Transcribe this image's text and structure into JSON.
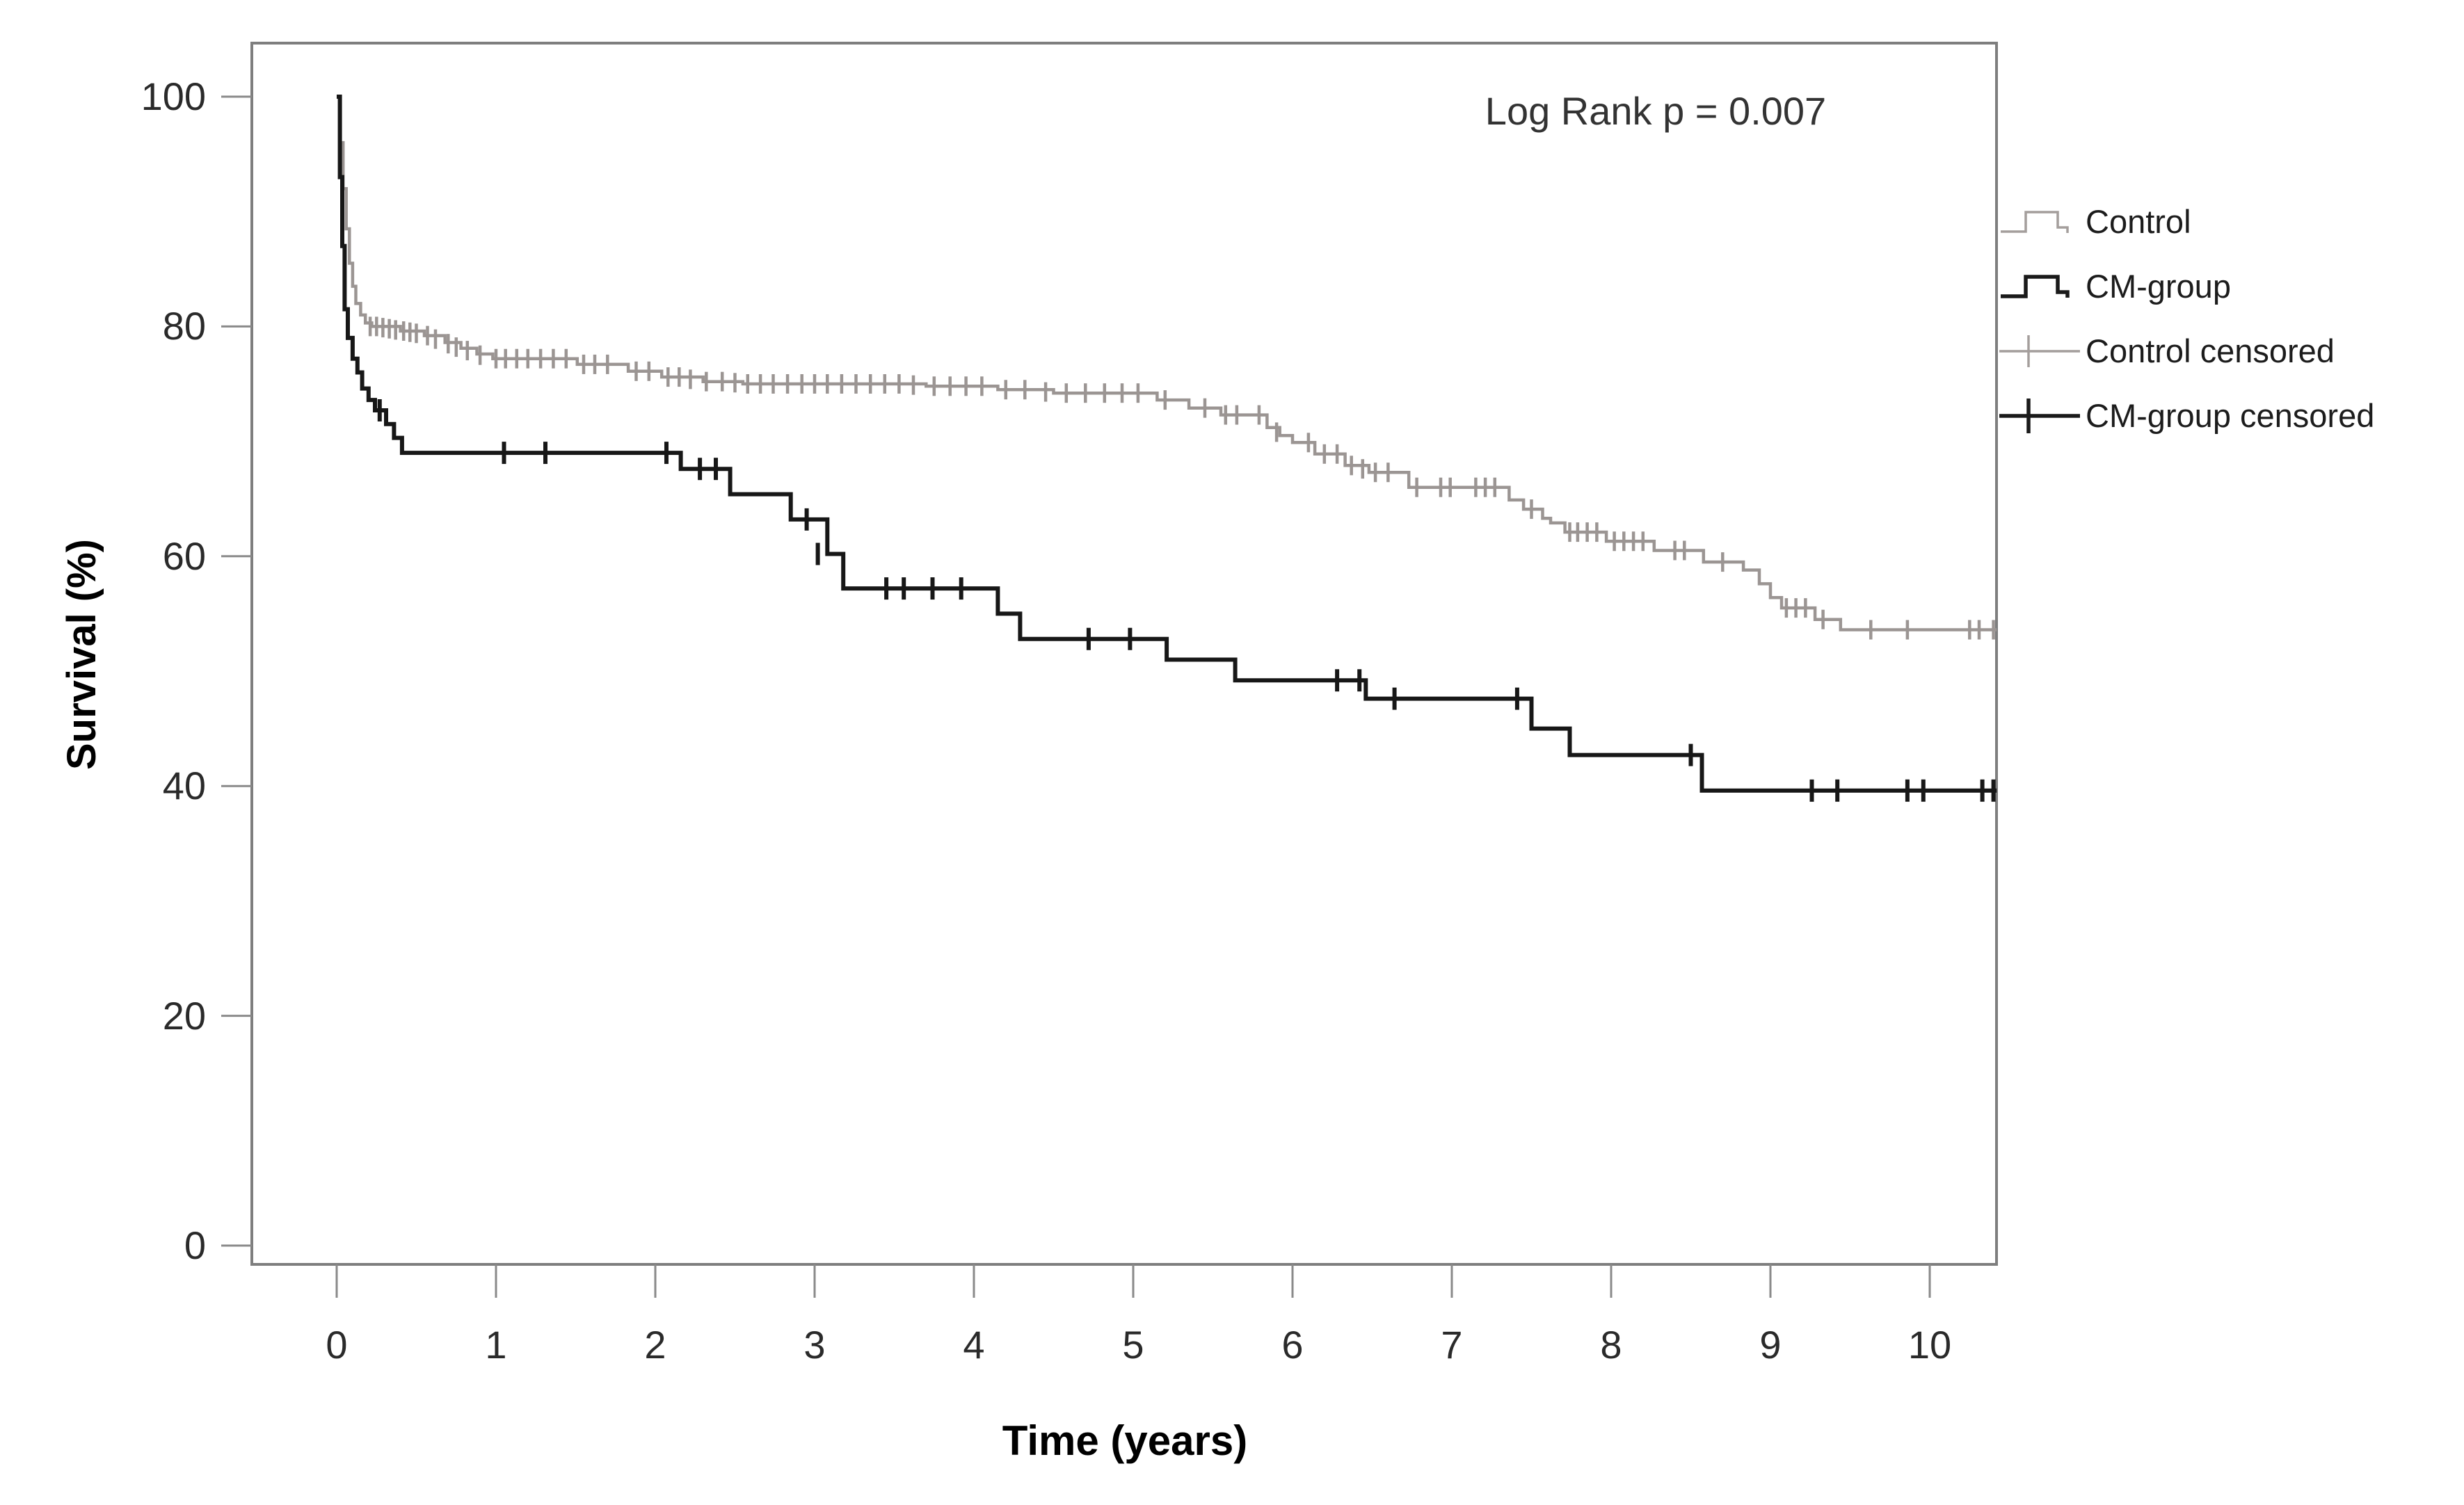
{
  "annotation": {
    "log_rank_label": "Log Rank p = 0.007"
  },
  "axes": {
    "y_title": "Survival (%)",
    "x_title": "Time (years)",
    "y_ticks": [
      "100",
      "80",
      "60",
      "40",
      "20",
      "0"
    ],
    "x_ticks": [
      "0",
      "1",
      "2",
      "3",
      "4",
      "5",
      "6",
      "7",
      "8",
      "9",
      "10"
    ]
  },
  "legend": {
    "items": [
      {
        "label": "Control",
        "type": "step",
        "color": "#a49e9c",
        "stroke_width": 3.5
      },
      {
        "label": "CM-group",
        "type": "step",
        "color": "#1a1a1a",
        "stroke_width": 5.5
      },
      {
        "label": "Control censored",
        "type": "censor",
        "color": "#a49e9c",
        "stroke_width": 3.5
      },
      {
        "label": "CM-group censored",
        "type": "censor",
        "color": "#1a1a1a",
        "stroke_width": 5.5
      }
    ]
  },
  "chart_data": {
    "type": "line",
    "subtype": "kaplan-meier-step",
    "title": "",
    "xlabel": "Time (years)",
    "ylabel": "Survival (%)",
    "xlim": [
      -0.53,
      10.42
    ],
    "ylim": [
      -1.6,
      101.6
    ],
    "x_tick_values": [
      0,
      1,
      2,
      3,
      4,
      5,
      6,
      7,
      8,
      9,
      10
    ],
    "y_tick_values": [
      100,
      80,
      60,
      40,
      20,
      0
    ],
    "grid": false,
    "legend_position": "right-outside",
    "log_rank_p": 0.007,
    "series": [
      {
        "name": "Control",
        "color": "#9b9593",
        "stroke_width": 4.5,
        "censor_half_height": 14,
        "censor_stroke_width": 4.5,
        "points": [
          [
            0,
            100
          ],
          [
            0.02,
            96
          ],
          [
            0.04,
            92
          ],
          [
            0.06,
            88.5
          ],
          [
            0.08,
            85.5
          ],
          [
            0.1,
            83.5
          ],
          [
            0.12,
            82
          ],
          [
            0.15,
            81
          ],
          [
            0.18,
            80.3
          ],
          [
            0.22,
            80.0
          ],
          [
            0.4,
            79.6
          ],
          [
            0.55,
            79.2
          ],
          [
            0.68,
            78.6
          ],
          [
            0.78,
            78.1
          ],
          [
            0.88,
            77.6
          ],
          [
            0.98,
            77.2
          ],
          [
            1.51,
            76.7
          ],
          [
            1.83,
            76.1
          ],
          [
            2.04,
            75.6
          ],
          [
            2.3,
            75.2
          ],
          [
            2.55,
            75.0
          ],
          [
            3.7,
            74.8
          ],
          [
            4.15,
            74.5
          ],
          [
            4.5,
            74.2
          ],
          [
            5.15,
            73.6
          ],
          [
            5.35,
            72.9
          ],
          [
            5.55,
            72.3
          ],
          [
            5.84,
            71.2
          ],
          [
            5.92,
            70.5
          ],
          [
            6.0,
            69.9
          ],
          [
            6.14,
            68.9
          ],
          [
            6.33,
            67.9
          ],
          [
            6.48,
            67.3
          ],
          [
            6.73,
            66.0
          ],
          [
            7.36,
            64.9
          ],
          [
            7.45,
            64.1
          ],
          [
            7.57,
            63.3
          ],
          [
            7.62,
            62.9
          ],
          [
            7.71,
            62.1
          ],
          [
            7.97,
            61.3
          ],
          [
            8.27,
            60.5
          ],
          [
            8.58,
            59.5
          ],
          [
            8.83,
            58.8
          ],
          [
            8.93,
            57.6
          ],
          [
            9.0,
            56.4
          ],
          [
            9.07,
            55.5
          ],
          [
            9.28,
            54.5
          ],
          [
            9.44,
            53.6
          ],
          [
            10.42,
            53.6
          ]
        ],
        "censored": [
          [
            0.21,
            80.0
          ],
          [
            0.25,
            80.0
          ],
          [
            0.29,
            79.9
          ],
          [
            0.33,
            79.8
          ],
          [
            0.37,
            79.7
          ],
          [
            0.42,
            79.6
          ],
          [
            0.46,
            79.5
          ],
          [
            0.5,
            79.4
          ],
          [
            0.57,
            79.2
          ],
          [
            0.62,
            78.9
          ],
          [
            0.7,
            78.5
          ],
          [
            0.75,
            78.2
          ],
          [
            0.82,
            77.9
          ],
          [
            0.9,
            77.5
          ],
          [
            1.0,
            77.2
          ],
          [
            1.06,
            77.2
          ],
          [
            1.13,
            77.2
          ],
          [
            1.2,
            77.2
          ],
          [
            1.28,
            77.2
          ],
          [
            1.36,
            77.2
          ],
          [
            1.44,
            77.2
          ],
          [
            1.55,
            76.7
          ],
          [
            1.62,
            76.7
          ],
          [
            1.7,
            76.7
          ],
          [
            1.88,
            76.1
          ],
          [
            1.96,
            76.1
          ],
          [
            2.08,
            75.6
          ],
          [
            2.15,
            75.6
          ],
          [
            2.22,
            75.4
          ],
          [
            2.32,
            75.2
          ],
          [
            2.42,
            75.2
          ],
          [
            2.5,
            75.1
          ],
          [
            2.58,
            75.0
          ],
          [
            2.66,
            75.0
          ],
          [
            2.74,
            75.0
          ],
          [
            2.83,
            75.0
          ],
          [
            2.92,
            75.0
          ],
          [
            3.0,
            75.0
          ],
          [
            3.08,
            75.0
          ],
          [
            3.17,
            75.0
          ],
          [
            3.26,
            75.0
          ],
          [
            3.35,
            75.0
          ],
          [
            3.44,
            75.0
          ],
          [
            3.53,
            75.0
          ],
          [
            3.62,
            74.9
          ],
          [
            3.75,
            74.8
          ],
          [
            3.85,
            74.8
          ],
          [
            3.95,
            74.8
          ],
          [
            4.05,
            74.8
          ],
          [
            4.2,
            74.5
          ],
          [
            4.32,
            74.5
          ],
          [
            4.45,
            74.3
          ],
          [
            4.58,
            74.2
          ],
          [
            4.7,
            74.2
          ],
          [
            4.82,
            74.2
          ],
          [
            4.93,
            74.2
          ],
          [
            5.03,
            74.2
          ],
          [
            5.2,
            73.6
          ],
          [
            5.45,
            72.9
          ],
          [
            5.58,
            72.3
          ],
          [
            5.65,
            72.3
          ],
          [
            5.79,
            72.3
          ],
          [
            5.9,
            70.8
          ],
          [
            6.1,
            69.9
          ],
          [
            6.2,
            68.9
          ],
          [
            6.28,
            68.9
          ],
          [
            6.37,
            67.9
          ],
          [
            6.44,
            67.6
          ],
          [
            6.52,
            67.3
          ],
          [
            6.6,
            67.3
          ],
          [
            6.78,
            66.0
          ],
          [
            6.93,
            66.0
          ],
          [
            6.99,
            66.0
          ],
          [
            7.15,
            66.0
          ],
          [
            7.21,
            66.0
          ],
          [
            7.27,
            66.0
          ],
          [
            7.5,
            64.1
          ],
          [
            7.74,
            62.1
          ],
          [
            7.79,
            62.1
          ],
          [
            7.85,
            62.1
          ],
          [
            7.91,
            62.1
          ],
          [
            8.02,
            61.3
          ],
          [
            8.08,
            61.3
          ],
          [
            8.14,
            61.3
          ],
          [
            8.2,
            61.3
          ],
          [
            8.4,
            60.5
          ],
          [
            8.46,
            60.5
          ],
          [
            8.7,
            59.5
          ],
          [
            9.1,
            55.5
          ],
          [
            9.16,
            55.5
          ],
          [
            9.22,
            55.5
          ],
          [
            9.33,
            54.5
          ],
          [
            9.63,
            53.6
          ],
          [
            9.86,
            53.6
          ],
          [
            10.25,
            53.6
          ],
          [
            10.31,
            53.6
          ],
          [
            10.4,
            53.6
          ]
        ]
      },
      {
        "name": "CM-group",
        "color": "#171717",
        "stroke_width": 6,
        "censor_half_height": 16,
        "censor_stroke_width": 6,
        "points": [
          [
            0,
            100
          ],
          [
            0.02,
            93
          ],
          [
            0.035,
            87
          ],
          [
            0.05,
            81.5
          ],
          [
            0.07,
            79
          ],
          [
            0.1,
            77.2
          ],
          [
            0.13,
            76.0
          ],
          [
            0.16,
            74.6
          ],
          [
            0.2,
            73.6
          ],
          [
            0.24,
            72.7
          ],
          [
            0.31,
            71.5
          ],
          [
            0.36,
            70.3
          ],
          [
            0.41,
            69.0
          ],
          [
            2.16,
            67.6
          ],
          [
            2.47,
            65.4
          ],
          [
            2.85,
            63.2
          ],
          [
            3.08,
            60.2
          ],
          [
            3.18,
            57.2
          ],
          [
            4.15,
            55.0
          ],
          [
            4.29,
            52.8
          ],
          [
            5.21,
            51.0
          ],
          [
            5.64,
            49.2
          ],
          [
            6.46,
            47.6
          ],
          [
            7.5,
            45.0
          ],
          [
            7.74,
            42.7
          ],
          [
            8.57,
            39.6
          ],
          [
            10.42,
            39.6
          ]
        ],
        "censored": [
          [
            0.27,
            72.7
          ],
          [
            1.05,
            69.0
          ],
          [
            1.31,
            69.0
          ],
          [
            2.07,
            69.0
          ],
          [
            2.28,
            67.6
          ],
          [
            2.38,
            67.6
          ],
          [
            2.95,
            63.2
          ],
          [
            3.02,
            60.2
          ],
          [
            3.45,
            57.2
          ],
          [
            3.56,
            57.2
          ],
          [
            3.74,
            57.2
          ],
          [
            3.92,
            57.2
          ],
          [
            4.72,
            52.8
          ],
          [
            4.98,
            52.8
          ],
          [
            6.28,
            49.2
          ],
          [
            6.42,
            49.2
          ],
          [
            6.64,
            47.6
          ],
          [
            7.41,
            47.6
          ],
          [
            8.5,
            42.7
          ],
          [
            9.26,
            39.6
          ],
          [
            9.42,
            39.6
          ],
          [
            9.86,
            39.6
          ],
          [
            9.96,
            39.6
          ],
          [
            10.33,
            39.6
          ],
          [
            10.4,
            39.6
          ]
        ]
      }
    ]
  }
}
